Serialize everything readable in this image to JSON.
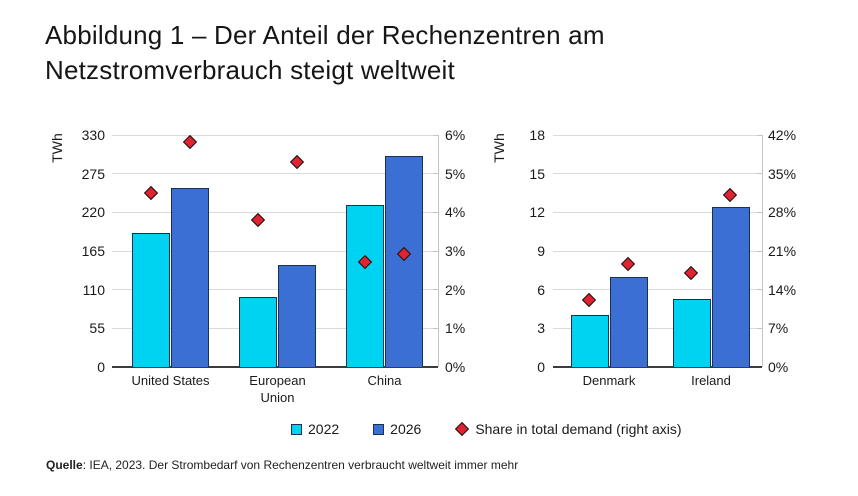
{
  "title": "Abbildung 1 – Der Anteil der Rechenzentren am Netzstromverbrauch steigt weltweit",
  "source": {
    "prefix": "Quelle",
    "rest": ": IEA, 2023. Der Strombedarf von Rechenzentren verbraucht weltweit immer mehr"
  },
  "legend": {
    "items": [
      {
        "label": "2022",
        "marker": "square-cyan"
      },
      {
        "label": "2026",
        "marker": "square-blue"
      },
      {
        "label": "Share in total demand (right axis)",
        "marker": "diamond-red"
      }
    ]
  },
  "colors": {
    "bar_2022": "#00D2F2",
    "bar_2026": "#3B6FD3",
    "bar_border": "#17334E",
    "share_diamond": "#E02330",
    "diamond_border": "#141414",
    "grid": "#DADADA",
    "axis_baseline": "#3C3C3C",
    "right_axis_line": "#C4C4C4"
  },
  "chart_data": [
    {
      "type": "bar",
      "categories": [
        "United States",
        "European\nUnion",
        "China"
      ],
      "left_axis": {
        "title": "TWh",
        "max": 330,
        "ticks": [
          "0",
          "55",
          "110",
          "165",
          "220",
          "275",
          "330"
        ]
      },
      "right_axis": {
        "max": 6,
        "ticks": [
          "0%",
          "1%",
          "2%",
          "3%",
          "4%",
          "5%",
          "6%"
        ]
      },
      "series": [
        {
          "name": "2022",
          "values": [
            190,
            100,
            230
          ],
          "share_pct": [
            4.5,
            3.8,
            2.7
          ]
        },
        {
          "name": "2026",
          "values": [
            255,
            145,
            300
          ],
          "share_pct": [
            5.8,
            5.3,
            2.9
          ]
        }
      ],
      "share_series_name": "Share in total demand (right axis)"
    },
    {
      "type": "bar",
      "categories": [
        "Denmark",
        "Ireland"
      ],
      "left_axis": {
        "title": "TWh",
        "max": 18,
        "ticks": [
          "0",
          "3",
          "6",
          "9",
          "12",
          "15",
          "18"
        ]
      },
      "right_axis": {
        "max": 42,
        "ticks": [
          "0%",
          "7%",
          "14%",
          "21%",
          "28%",
          "35%",
          "42%"
        ]
      },
      "series": [
        {
          "name": "2022",
          "values": [
            4,
            5.3
          ],
          "share_pct": [
            12,
            17
          ]
        },
        {
          "name": "2026",
          "values": [
            7,
            12.4
          ],
          "share_pct": [
            18.5,
            31
          ]
        }
      ],
      "share_series_name": "Share in total demand (right axis)"
    }
  ]
}
